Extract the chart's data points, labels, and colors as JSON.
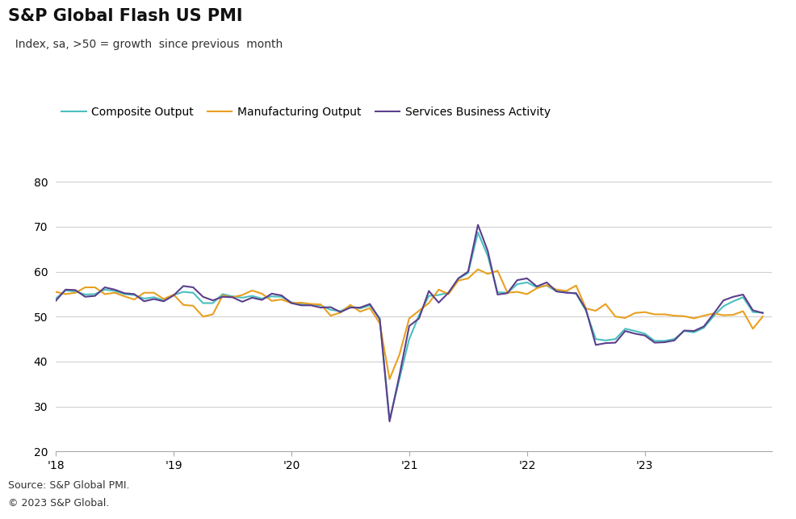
{
  "title": "S&P Global Flash US PMI",
  "subtitle": "  Index, sa, >50 = growth  since previous  month",
  "source_line1": "Source: S&P Global PMI.",
  "source_line2": "© 2023 S&P Global.",
  "ylim": [
    20,
    80
  ],
  "yticks": [
    20,
    30,
    40,
    50,
    60,
    70,
    80
  ],
  "xtick_labels": [
    "'18",
    "'19",
    "'20",
    "'21",
    "'22",
    "'23"
  ],
  "colors": {
    "composite": "#4BBFBF",
    "manufacturing": "#E8A020",
    "services": "#5B3F8C"
  },
  "legend_labels": [
    "Composite Output",
    "Manufacturing Output",
    "Services Business Activity"
  ],
  "composite": [
    54.0,
    55.8,
    55.6,
    54.9,
    55.0,
    56.0,
    55.7,
    55.0,
    54.8,
    54.0,
    54.3,
    53.6,
    54.8,
    55.5,
    55.3,
    53.0,
    53.0,
    55.0,
    54.5,
    54.2,
    54.6,
    54.0,
    54.5,
    54.4,
    53.2,
    52.7,
    52.7,
    52.5,
    51.5,
    51.2,
    52.3,
    51.8,
    52.5,
    49.6,
    27.0,
    36.1,
    45.0,
    50.3,
    54.6,
    54.8,
    55.3,
    58.4,
    59.7,
    68.7,
    63.5,
    55.4,
    55.3,
    57.2,
    57.6,
    56.5,
    56.9,
    55.6,
    55.4,
    55.1,
    51.3,
    45.0,
    44.7,
    45.0,
    47.3,
    46.8,
    46.2,
    44.6,
    44.6,
    45.0,
    46.8,
    46.5,
    47.5,
    50.1,
    52.3,
    53.4,
    54.3,
    51.0,
    50.9
  ],
  "manufacturing": [
    55.5,
    55.0,
    55.3,
    56.5,
    56.5,
    55.0,
    55.3,
    54.5,
    53.8,
    55.3,
    55.3,
    53.9,
    54.9,
    52.6,
    52.4,
    50.0,
    50.5,
    54.7,
    54.3,
    54.8,
    55.8,
    55.1,
    53.5,
    53.8,
    53.0,
    53.1,
    52.8,
    52.7,
    50.2,
    50.9,
    52.6,
    51.1,
    51.9,
    48.5,
    36.1,
    41.5,
    49.6,
    51.3,
    53.0,
    56.0,
    55.0,
    58.0,
    58.5,
    60.5,
    59.5,
    60.2,
    55.3,
    55.5,
    55.0,
    56.3,
    57.0,
    56.0,
    55.7,
    56.9,
    51.8,
    51.3,
    52.8,
    50.0,
    49.7,
    50.8,
    51.0,
    50.5,
    50.5,
    50.2,
    50.1,
    49.6,
    50.2,
    50.7,
    50.3,
    50.4,
    51.2,
    47.3,
    50.0
  ],
  "services": [
    53.5,
    56.0,
    55.9,
    54.4,
    54.6,
    56.5,
    56.0,
    55.2,
    55.0,
    53.4,
    53.9,
    53.4,
    54.7,
    56.8,
    56.5,
    54.4,
    53.6,
    54.4,
    54.3,
    53.3,
    54.2,
    53.7,
    55.1,
    54.7,
    53.0,
    52.5,
    52.5,
    52.0,
    52.1,
    51.0,
    52.0,
    52.0,
    52.8,
    49.4,
    26.7,
    36.9,
    47.9,
    49.6,
    55.7,
    53.1,
    55.3,
    58.5,
    60.0,
    70.4,
    64.6,
    54.9,
    55.2,
    58.1,
    58.5,
    56.7,
    57.6,
    55.6,
    55.3,
    55.2,
    51.6,
    43.7,
    44.1,
    44.2,
    46.8,
    46.2,
    45.8,
    44.2,
    44.3,
    44.7,
    46.9,
    46.8,
    47.8,
    50.6,
    53.6,
    54.4,
    54.9,
    51.4,
    50.8
  ]
}
